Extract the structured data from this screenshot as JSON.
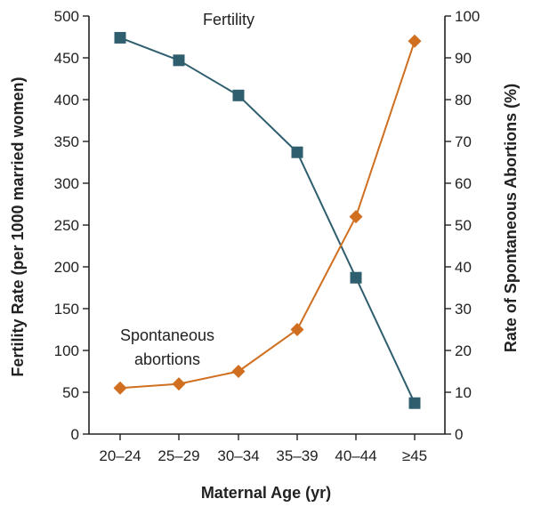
{
  "chart_data": {
    "type": "line",
    "categories": [
      "20–24",
      "25–29",
      "30–34",
      "35–39",
      "40–44",
      "≥45"
    ],
    "xlabel": "Maternal Age (yr)",
    "ylabel_left": "Fertility Rate (per 1000 married women)",
    "ylabel_right": "Rate of Spontaneous Abortions (%)",
    "ylim_left": [
      0,
      500
    ],
    "yticks_left": [
      0,
      50,
      100,
      150,
      200,
      250,
      300,
      350,
      400,
      450,
      500
    ],
    "ylim_right": [
      0,
      100
    ],
    "yticks_right": [
      0,
      10,
      20,
      30,
      40,
      50,
      60,
      70,
      80,
      90,
      100
    ],
    "grid": false,
    "series": [
      {
        "name": "Fertility",
        "axis": "left",
        "marker": "square",
        "color": "#2f5f6e",
        "values": [
          474,
          447,
          405,
          337,
          187,
          37
        ]
      },
      {
        "name": "Spontaneous abortions",
        "axis": "right",
        "marker": "diamond",
        "color": "#d06f1f",
        "values": [
          11,
          12,
          15,
          25,
          52,
          94
        ]
      }
    ],
    "annotations": {
      "fertility_line1": "Fertility",
      "abortions_line1": "Spontaneous",
      "abortions_line2": "abortions"
    }
  }
}
